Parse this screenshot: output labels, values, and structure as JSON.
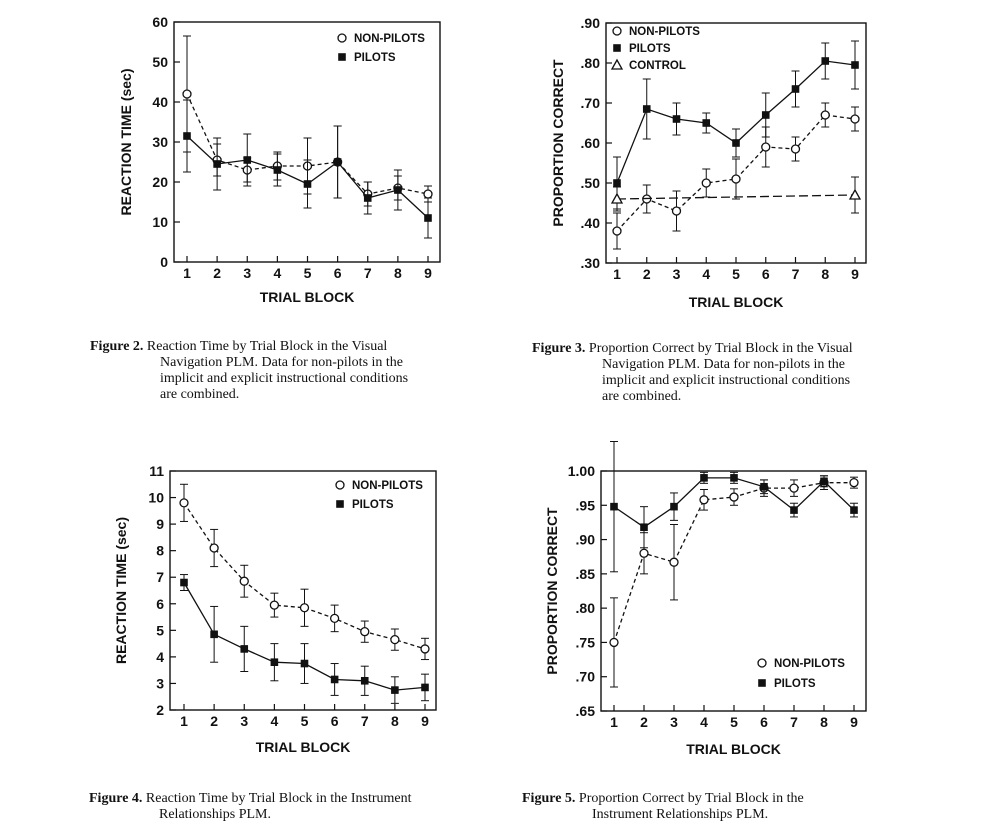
{
  "chart_data": [
    {
      "type": "line",
      "xlabel": "TRIAL BLOCK",
      "ylabel": "REACTION TIME (sec)",
      "x": [
        1,
        2,
        3,
        4,
        5,
        6,
        7,
        8,
        9
      ],
      "ylim": [
        0,
        60
      ],
      "yticks": [
        0,
        10,
        20,
        30,
        40,
        50,
        60
      ],
      "ytick_labels": [
        "0",
        "10",
        "20",
        "30",
        "40",
        "50",
        "60"
      ],
      "legend_position": "top-right",
      "series": [
        {
          "name": "NON-PILOTS",
          "marker": "open-circle",
          "line": "dashed",
          "values": [
            42,
            25.5,
            23,
            24,
            24,
            25,
            17,
            18.5,
            17
          ],
          "error": [
            14.5,
            4,
            3,
            3.5,
            7,
            9,
            3,
            3,
            2
          ]
        },
        {
          "name": "PILOTS",
          "marker": "filled-square",
          "line": "solid",
          "values": [
            31.5,
            24.5,
            25.5,
            23,
            19.5,
            25,
            16,
            18,
            11
          ],
          "error": [
            9,
            6.5,
            6.5,
            4,
            6,
            9,
            4,
            5,
            5
          ]
        }
      ],
      "caption_label": "Figure 2.",
      "caption_lines": [
        "Reaction Time by Trial Block in the Visual",
        "Navigation PLM. Data for non-pilots in the",
        "implicit and explicit instructional conditions",
        "are combined."
      ]
    },
    {
      "type": "line",
      "xlabel": "TRIAL BLOCK",
      "ylabel": "PROPORTION CORRECT",
      "x": [
        1,
        2,
        3,
        4,
        5,
        6,
        7,
        8,
        9
      ],
      "ylim": [
        0.3,
        0.9
      ],
      "yticks": [
        0.3,
        0.4,
        0.5,
        0.6,
        0.7,
        0.8,
        0.9
      ],
      "ytick_labels": [
        ".30",
        ".40",
        ".50",
        ".60",
        ".70",
        ".80",
        ".90"
      ],
      "legend_position": "top-left",
      "series": [
        {
          "name": "NON-PILOTS",
          "marker": "open-circle",
          "line": "dashed",
          "values": [
            0.38,
            0.46,
            0.43,
            0.5,
            0.51,
            0.59,
            0.585,
            0.67,
            0.66
          ],
          "error": [
            0.045,
            0.035,
            0.05,
            0.035,
            0.05,
            0.05,
            0.03,
            0.03,
            0.03
          ]
        },
        {
          "name": "PILOTS",
          "marker": "filled-square",
          "line": "solid",
          "values": [
            0.5,
            0.685,
            0.66,
            0.65,
            0.6,
            0.67,
            0.735,
            0.805,
            0.795
          ],
          "error": [
            0.065,
            0.075,
            0.04,
            0.025,
            0.035,
            0.055,
            0.045,
            0.045,
            0.06
          ]
        },
        {
          "name": "CONTROL",
          "marker": "open-triangle",
          "line": "long-dash",
          "points": [
            [
              1,
              0.46
            ],
            [
              9,
              0.47
            ]
          ],
          "error": [
            0.03,
            0.045
          ]
        }
      ],
      "caption_label": "Figure 3.",
      "caption_lines": [
        "Proportion Correct by Trial Block in the Visual",
        "Navigation PLM. Data for non-pilots in the",
        "implicit and explicit instructional conditions",
        "are combined."
      ]
    },
    {
      "type": "line",
      "xlabel": "TRIAL BLOCK",
      "ylabel": "REACTION TIME (sec)",
      "x": [
        1,
        2,
        3,
        4,
        5,
        6,
        7,
        8,
        9
      ],
      "ylim": [
        2,
        11
      ],
      "yticks": [
        2,
        3,
        4,
        5,
        6,
        7,
        8,
        9,
        10,
        11
      ],
      "ytick_labels": [
        "2",
        "3",
        "4",
        "5",
        "6",
        "7",
        "8",
        "9",
        "10",
        "11"
      ],
      "legend_position": "top-right",
      "series": [
        {
          "name": "NON-PILOTS",
          "marker": "open-circle",
          "line": "dashed",
          "values": [
            9.8,
            8.1,
            6.85,
            5.95,
            5.85,
            5.45,
            4.95,
            4.65,
            4.3
          ],
          "error": [
            0.7,
            0.7,
            0.6,
            0.45,
            0.7,
            0.5,
            0.4,
            0.4,
            0.4
          ]
        },
        {
          "name": "PILOTS",
          "marker": "filled-square",
          "line": "solid",
          "values": [
            6.8,
            4.85,
            4.3,
            3.8,
            3.75,
            3.15,
            3.1,
            2.75,
            2.85
          ],
          "error": [
            0.3,
            1.05,
            0.85,
            0.7,
            0.75,
            0.6,
            0.55,
            0.5,
            0.5
          ]
        }
      ],
      "caption_label": "Figure 4.",
      "caption_lines": [
        "Reaction Time by Trial Block in the Instrument",
        "Relationships PLM."
      ]
    },
    {
      "type": "line",
      "xlabel": "TRIAL BLOCK",
      "ylabel": "PROPORTION CORRECT",
      "x": [
        1,
        2,
        3,
        4,
        5,
        6,
        7,
        8,
        9
      ],
      "ylim": [
        0.65,
        1.0
      ],
      "yticks": [
        0.65,
        0.7,
        0.75,
        0.8,
        0.85,
        0.9,
        0.95,
        1.0
      ],
      "ytick_labels": [
        ".65",
        ".70",
        ".75",
        ".80",
        ".85",
        ".90",
        ".95",
        "1.00"
      ],
      "legend_position": "bottom-right",
      "series": [
        {
          "name": "NON-PILOTS",
          "marker": "open-circle",
          "line": "dashed",
          "values": [
            0.75,
            0.88,
            0.867,
            0.958,
            0.962,
            0.975,
            0.975,
            0.983,
            0.983
          ],
          "error": [
            0.065,
            0.03,
            0.055,
            0.015,
            0.012,
            0.012,
            0.012,
            0.01,
            0.008
          ]
        },
        {
          "name": "PILOTS",
          "marker": "filled-square",
          "line": "solid",
          "values": [
            0.948,
            0.918,
            0.948,
            0.99,
            0.99,
            0.977,
            0.943,
            0.985,
            0.943
          ],
          "error": [
            0.095,
            0.03,
            0.02,
            0.008,
            0.008,
            0.01,
            0.01,
            0.008,
            0.01
          ]
        }
      ],
      "caption_label": "Figure 5.",
      "caption_lines": [
        "Proportion Correct by Trial Block in the",
        "Instrument Relationships PLM."
      ]
    }
  ]
}
